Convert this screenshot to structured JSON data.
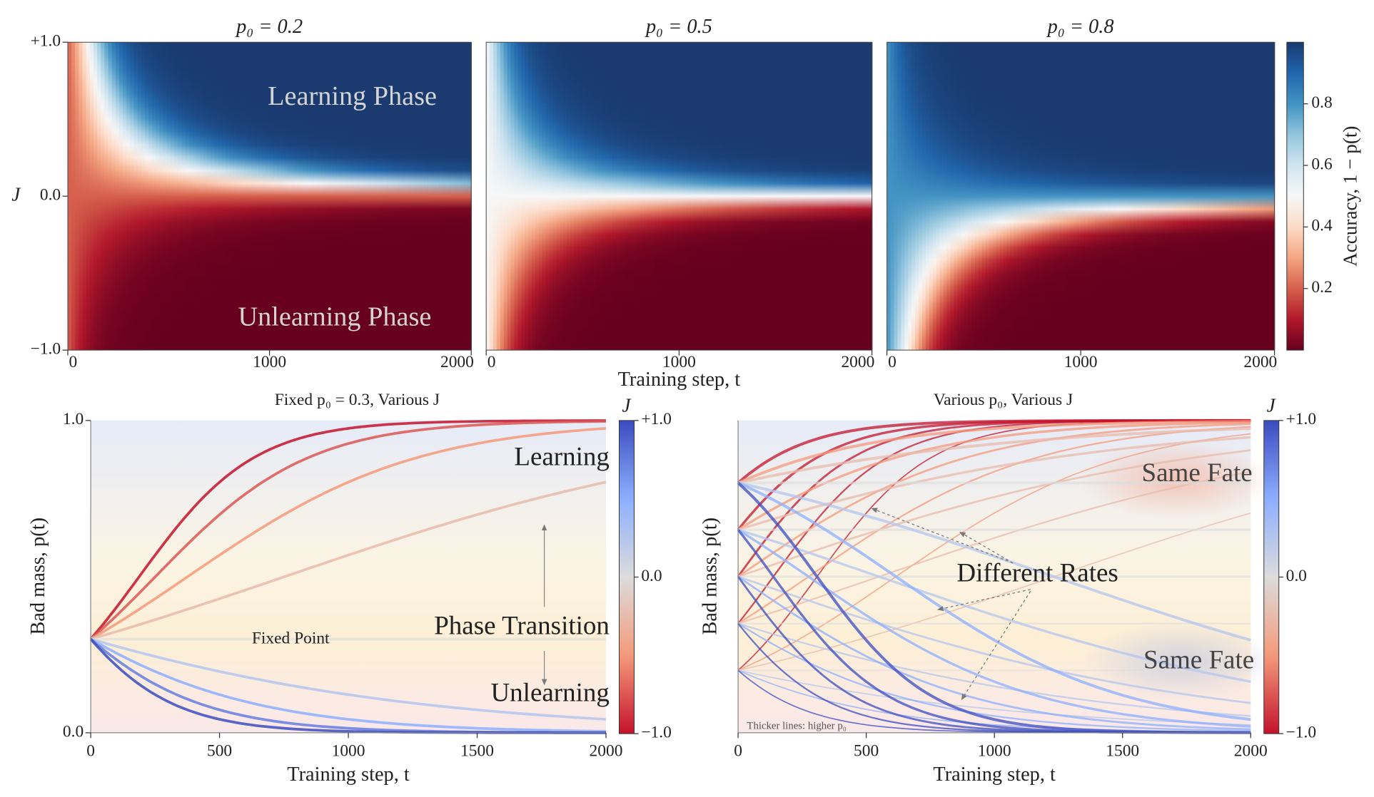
{
  "chart_data": [
    {
      "type": "heatmap",
      "title": "p₀ = 0.2",
      "p0": 0.2,
      "ylabel": "J",
      "xlim": [
        0,
        2000
      ],
      "ylim": [
        -1,
        1
      ],
      "xticks": [
        0,
        1000,
        2000
      ],
      "yticks": [
        {
          "value": 1,
          "label": "+1.0"
        },
        {
          "value": 0,
          "label": "0.0"
        },
        {
          "value": -1,
          "label": "−1.0"
        }
      ],
      "annotations": [
        "Learning Phase",
        "Unlearning Phase"
      ]
    },
    {
      "type": "heatmap",
      "title": "p₀ = 0.5",
      "p0": 0.5,
      "xlabel": "Training step, t",
      "xlim": [
        0,
        2000
      ],
      "ylim": [
        -1,
        1
      ],
      "xticks": [
        0,
        1000,
        2000
      ]
    },
    {
      "type": "heatmap",
      "title": "p₀ = 0.8",
      "p0": 0.8,
      "xlim": [
        0,
        2000
      ],
      "ylim": [
        -1,
        1
      ],
      "xticks": [
        0,
        1000,
        2000
      ]
    },
    {
      "type": "colorbar",
      "label": "Accuracy, 1 − p(t)",
      "lim": [
        0,
        1
      ],
      "ticks": [
        0.2,
        0.4,
        0.6,
        0.8
      ]
    },
    {
      "type": "line",
      "title": "Fixed p₀ = 0.3, Various J",
      "xlabel": "Training step, t",
      "ylabel": "Bad mass, p(t)",
      "xlim": [
        0,
        2000
      ],
      "ylim": [
        0,
        1
      ],
      "xticks": [
        0,
        500,
        1000,
        1500,
        2000
      ],
      "yticks": [
        {
          "value": 1,
          "label": "1.0"
        },
        {
          "value": 0,
          "label": "0.0"
        }
      ],
      "p0": 0.3,
      "J_values": [
        -1,
        -0.75,
        -0.5,
        -0.25,
        0,
        0.25,
        0.5,
        0.75,
        1
      ],
      "colorbar": {
        "label": "J",
        "lim": [
          -1,
          1
        ],
        "ticks": [
          {
            "value": 1,
            "label": "+1.0"
          },
          {
            "value": 0,
            "label": "0.0"
          },
          {
            "value": -1,
            "label": "−1.0"
          }
        ]
      },
      "annotations": [
        "Learning",
        "Phase Transition",
        "Unlearning",
        "Fixed Point"
      ]
    },
    {
      "type": "line",
      "title": "Various p₀, Various J",
      "xlabel": "Training step, t",
      "ylabel": "Bad mass, p(t)",
      "xlim": [
        0,
        2000
      ],
      "ylim": [
        0,
        1
      ],
      "xticks": [
        0,
        500,
        1000,
        1500,
        2000
      ],
      "p0_values": [
        0.2,
        0.35,
        0.5,
        0.65,
        0.8
      ],
      "J_values": [
        -1,
        -0.5,
        -0.25,
        0,
        0.25,
        0.5,
        1
      ],
      "colorbar": {
        "label": "J",
        "lim": [
          -1,
          1
        ],
        "ticks": [
          {
            "value": 1,
            "label": "+1.0"
          },
          {
            "value": 0,
            "label": "0.0"
          },
          {
            "value": -1,
            "label": "−1.0"
          }
        ]
      },
      "annotations": [
        "Same Fate",
        "Same Fate",
        "Different Rates",
        "Thicker lines: higher p₀"
      ]
    }
  ]
}
